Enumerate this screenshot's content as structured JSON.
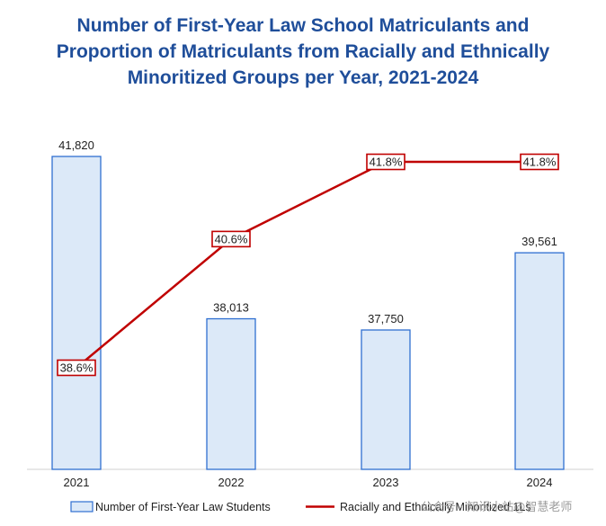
{
  "chart_data": {
    "type": "bar",
    "title_lines": [
      "Number of First-Year Law School Matriculants and",
      "Proportion of Matriculants from Racially and Ethnically",
      "Minoritized Groups per Year, 2021-2024"
    ],
    "categories": [
      "2021",
      "2022",
      "2023",
      "2024"
    ],
    "series": [
      {
        "name": "Number of First-Year Law Students",
        "kind": "bar",
        "values": [
          41820,
          38013,
          37750,
          39561
        ],
        "labels": [
          "41,820",
          "38,013",
          "37,750",
          "39,561"
        ],
        "color": "#dce9f8",
        "edge_color": "#2f6fd1"
      },
      {
        "name": "Racially and Ethnically Minoritized 1Ls",
        "kind": "line",
        "values": [
          38.6,
          40.6,
          41.8,
          41.8
        ],
        "labels": [
          "38.6%",
          "40.6%",
          "41.8%",
          "41.8%"
        ],
        "color": "#c00000"
      }
    ],
    "legend_position": "bottom",
    "grid": false
  },
  "watermark": "公众号 · 知识小站@智慧老师"
}
